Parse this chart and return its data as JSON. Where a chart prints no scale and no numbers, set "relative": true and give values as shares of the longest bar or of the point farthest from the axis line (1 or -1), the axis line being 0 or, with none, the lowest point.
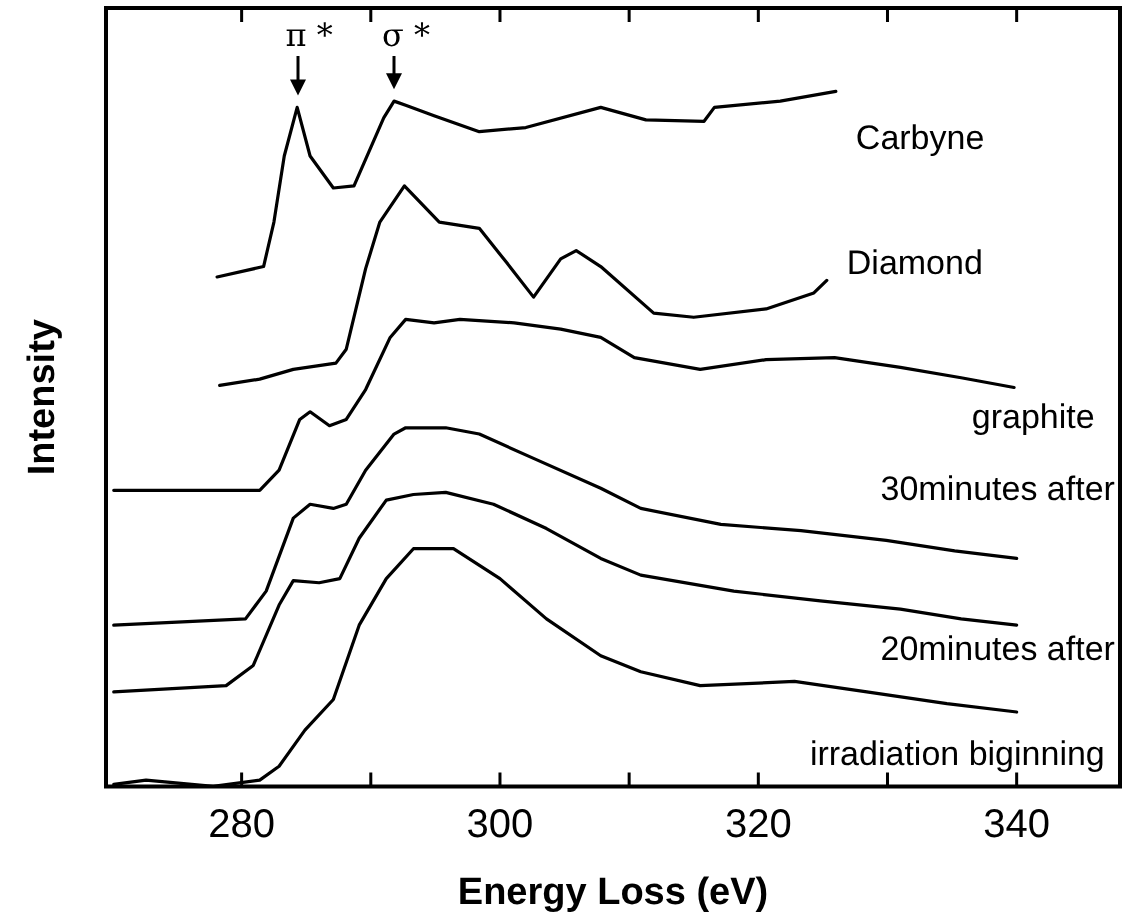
{
  "chart_data": {
    "type": "line",
    "xlabel": "Energy Loss (eV)",
    "ylabel": "Intensity",
    "relative": true,
    "xlim": [
      269.5,
      348
    ],
    "xticks": [
      280,
      {
        "value": 290,
        "label": null
      },
      300,
      {
        "value": 310,
        "label": null
      },
      320,
      {
        "value": 330,
        "label": null
      },
      340
    ],
    "grid": false,
    "legend": false,
    "marker": "none",
    "line_style": "solid",
    "annotations": [
      {
        "text": "π *",
        "x": 284.3,
        "y": 0.977
      },
      {
        "text": "σ *",
        "x": 291.8,
        "y": 0.986
      }
    ],
    "series": [
      {
        "name": "Carbyne",
        "color": "#000000",
        "x": [
          278.1,
          281.7,
          282.5,
          283.3,
          284.3,
          285.3,
          287.1,
          288.7,
          291.0,
          291.8,
          292.7,
          294.9,
          298.4,
          302.0,
          307.8,
          311.3,
          315.8,
          316.6,
          321.7,
          326.0
        ],
        "values": [
          0.733,
          0.748,
          0.812,
          0.907,
          0.977,
          0.907,
          0.861,
          0.864,
          0.962,
          0.986,
          0.98,
          0.965,
          0.942,
          0.948,
          0.977,
          0.959,
          0.957,
          0.977,
          0.986,
          1
        ]
      },
      {
        "name": "Diamond",
        "color": "#000000",
        "x": [
          278.3,
          281.4,
          284.0,
          287.3,
          288.1,
          289.6,
          290.7,
          292.6,
          295.3,
          298.4,
          300.5,
          302.6,
          304.7,
          305.9,
          307.8,
          311.9,
          315.0,
          320.6,
          324.3,
          325.3
        ],
        "values": [
          0.577,
          0.586,
          0.6,
          0.609,
          0.629,
          0.745,
          0.812,
          0.864,
          0.812,
          0.803,
          0.754,
          0.704,
          0.759,
          0.771,
          0.748,
          0.681,
          0.675,
          0.687,
          0.71,
          0.728
        ]
      },
      {
        "name": "graphite",
        "color": "#000000",
        "x": [
          270.1,
          281.4,
          282.9,
          284.5,
          285.3,
          286.8,
          288.1,
          289.6,
          291.5,
          292.7,
          294.9,
          296.9,
          301.1,
          304.7,
          307.8,
          310.4,
          315.5,
          320.6,
          325.9,
          331.0,
          335.7,
          339.8
        ],
        "values": [
          0.426,
          0.426,
          0.455,
          0.528,
          0.539,
          0.519,
          0.528,
          0.571,
          0.646,
          0.672,
          0.667,
          0.672,
          0.667,
          0.658,
          0.646,
          0.617,
          0.6,
          0.614,
          0.617,
          0.603,
          0.588,
          0.574
        ]
      },
      {
        "name": "30minutes after",
        "color": "#000000",
        "x": [
          270.1,
          280.3,
          281.9,
          284.0,
          285.3,
          287.1,
          288.1,
          289.6,
          291.8,
          292.7,
          295.8,
          298.4,
          302.6,
          307.8,
          310.9,
          317.1,
          323.3,
          329.9,
          335.2,
          340.0
        ],
        "values": [
          0.232,
          0.241,
          0.281,
          0.386,
          0.406,
          0.4,
          0.406,
          0.455,
          0.507,
          0.516,
          0.516,
          0.507,
          0.472,
          0.429,
          0.4,
          0.377,
          0.368,
          0.354,
          0.339,
          0.328
        ]
      },
      {
        "name": "20minutes after",
        "color": "#000000",
        "x": [
          270.1,
          278.8,
          280.9,
          282.9,
          284.0,
          286.0,
          287.6,
          289.1,
          291.2,
          293.3,
          295.8,
          299.5,
          303.6,
          307.8,
          310.9,
          318.1,
          324.8,
          331.0,
          335.7,
          340.0
        ],
        "values": [
          0.136,
          0.145,
          0.174,
          0.261,
          0.296,
          0.293,
          0.299,
          0.357,
          0.412,
          0.42,
          0.423,
          0.406,
          0.371,
          0.328,
          0.304,
          0.281,
          0.267,
          0.255,
          0.241,
          0.232
        ]
      },
      {
        "name": "irradiation biginning",
        "color": "#000000",
        "x": [
          270.1,
          272.6,
          277.8,
          281.4,
          282.9,
          284.9,
          287.1,
          289.1,
          291.2,
          293.3,
          296.4,
          300.0,
          303.6,
          307.8,
          310.9,
          315.5,
          322.8,
          328.4,
          334.6,
          340.0
        ],
        "values": [
          0.003,
          0.009,
          0,
          0.009,
          0.029,
          0.081,
          0.125,
          0.232,
          0.299,
          0.342,
          0.342,
          0.299,
          0.241,
          0.188,
          0.165,
          0.145,
          0.151,
          0.136,
          0.119,
          0.107
        ]
      }
    ]
  }
}
